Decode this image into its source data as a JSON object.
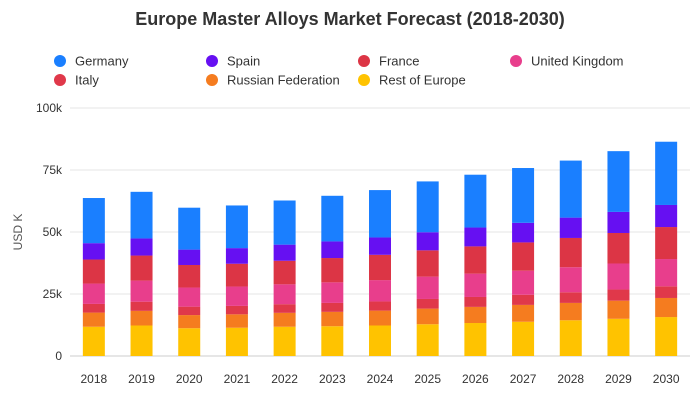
{
  "chart_data": {
    "type": "bar",
    "stacked": true,
    "title": "Europe Master Alloys Market Forecast (2018-2030)",
    "xlabel": "",
    "ylabel": "USD K",
    "ylim": [
      0,
      100000
    ],
    "yticks": [
      0,
      25000,
      50000,
      75000,
      100000
    ],
    "ytick_labels": [
      "0",
      "25k",
      "50k",
      "75k",
      "100k"
    ],
    "grid": true,
    "legend_position": "top",
    "categories": [
      "2018",
      "2019",
      "2020",
      "2021",
      "2022",
      "2023",
      "2024",
      "2025",
      "2026",
      "2027",
      "2028",
      "2029",
      "2030"
    ],
    "series": [
      {
        "name": "Rest of Europe",
        "color": "#ffc300",
        "values": [
          11800,
          12300,
          11200,
          11400,
          11800,
          12000,
          12300,
          12800,
          13300,
          13800,
          14400,
          15000,
          15700
        ]
      },
      {
        "name": "Russian Federation",
        "color": "#f57c1f",
        "values": [
          5700,
          5900,
          5300,
          5400,
          5600,
          5800,
          6000,
          6300,
          6500,
          6800,
          7000,
          7300,
          7700
        ]
      },
      {
        "name": "Italy",
        "color": "#e0384a",
        "values": [
          3500,
          3700,
          3400,
          3400,
          3500,
          3600,
          3700,
          3900,
          4000,
          4100,
          4300,
          4500,
          4700
        ]
      },
      {
        "name": "United Kingdom",
        "color": "#e83e8c",
        "values": [
          8200,
          8500,
          7700,
          7800,
          8000,
          8300,
          8600,
          9000,
          9400,
          9700,
          10100,
          10500,
          11000
        ]
      },
      {
        "name": "France",
        "color": "#dc3545",
        "values": [
          9700,
          10100,
          9100,
          9200,
          9500,
          9800,
          10200,
          10600,
          11000,
          11400,
          11800,
          12300,
          12900
        ]
      },
      {
        "name": "Spain",
        "color": "#6610f2",
        "values": [
          6600,
          6900,
          6200,
          6300,
          6500,
          6700,
          7000,
          7300,
          7600,
          7900,
          8200,
          8500,
          8900
        ]
      },
      {
        "name": "Germany",
        "color": "#1a7fff",
        "values": [
          18200,
          18800,
          16900,
          17200,
          17800,
          18400,
          19100,
          20500,
          21300,
          22100,
          23000,
          24500,
          25500
        ]
      }
    ],
    "legend_order": [
      "Germany",
      "Spain",
      "France",
      "United Kingdom",
      "Italy",
      "Russian Federation",
      "Rest of Europe"
    ]
  }
}
